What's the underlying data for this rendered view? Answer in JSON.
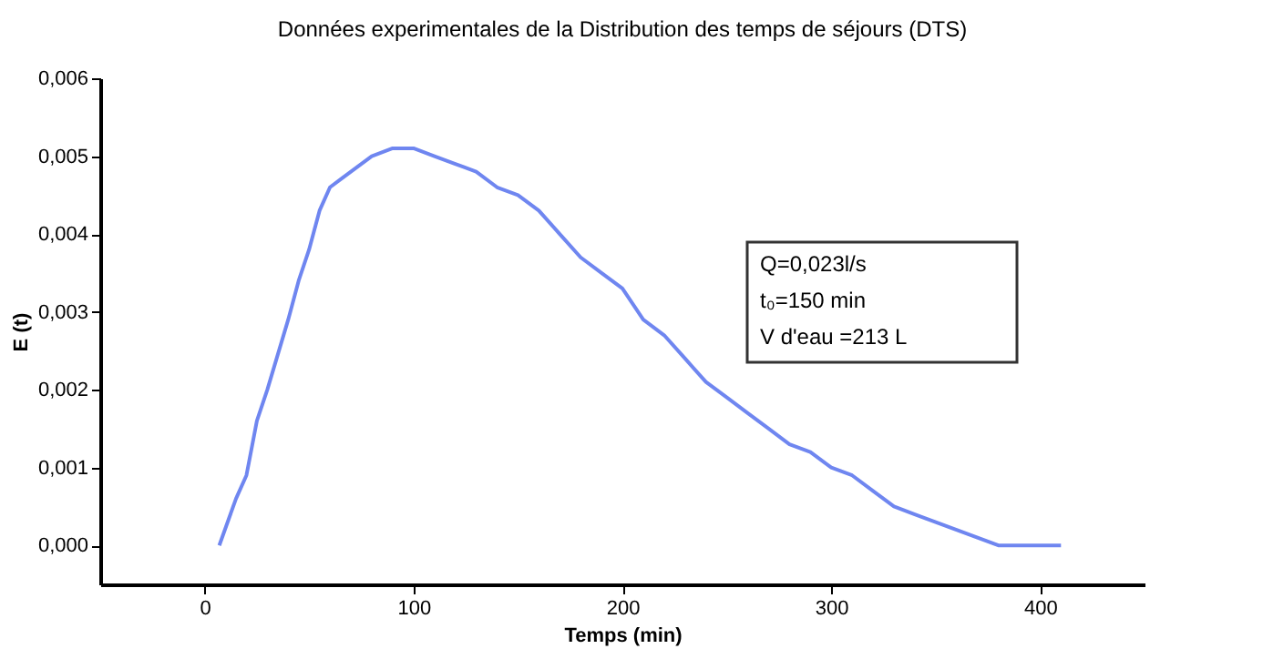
{
  "chart_data": {
    "type": "line",
    "title": "Données experimentales de la Distribution des temps de séjours (DTS)",
    "xlabel": "Temps (min)",
    "ylabel": "E (t)",
    "x": [
      7,
      15,
      20,
      25,
      30,
      40,
      45,
      50,
      55,
      60,
      65,
      75,
      80,
      90,
      100,
      110,
      120,
      130,
      140,
      150,
      160,
      170,
      180,
      190,
      200,
      210,
      220,
      230,
      240,
      250,
      260,
      270,
      280,
      290,
      300,
      310,
      320,
      330,
      340,
      350,
      360,
      370,
      380,
      390,
      400,
      410
    ],
    "series": [
      {
        "color": "#6f86f0",
        "values": [
          0,
          0.0006,
          0.0009,
          0.0016,
          0.002,
          0.0029,
          0.0034,
          0.0038,
          0.0043,
          0.0046,
          0.0047,
          0.0049,
          0.005,
          0.0051,
          0.0051,
          0.005,
          0.0049,
          0.0048,
          0.0046,
          0.0045,
          0.0043,
          0.004,
          0.0037,
          0.0035,
          0.0033,
          0.0029,
          0.0027,
          0.0024,
          0.0021,
          0.0019,
          0.0017,
          0.0015,
          0.0013,
          0.0012,
          0.001,
          0.0009,
          0.0007,
          0.0005,
          0.0004,
          0.0003,
          0.0002,
          0.0001,
          0,
          0,
          0,
          0
        ]
      }
    ],
    "xlim": [
      -50,
      450
    ],
    "xticks": [
      0,
      100,
      200,
      300,
      400
    ],
    "ylim": [
      -0.0005,
      0.006
    ],
    "yticks": [
      {
        "value": 0,
        "label": "0,000"
      },
      {
        "value": 0.001,
        "label": "0,001"
      },
      {
        "value": 0.002,
        "label": "0,002"
      },
      {
        "value": 0.003,
        "label": "0,003"
      },
      {
        "value": 0.004,
        "label": "0,004"
      },
      {
        "value": 0.005,
        "label": "0,005"
      },
      {
        "value": 0.006,
        "label": "0,006"
      }
    ],
    "annotations": [
      "Q=0,023l/s",
      "t₀=150 min",
      "V d'eau =213 L"
    ],
    "grid": false,
    "marker": "none",
    "line_style": "solid"
  }
}
